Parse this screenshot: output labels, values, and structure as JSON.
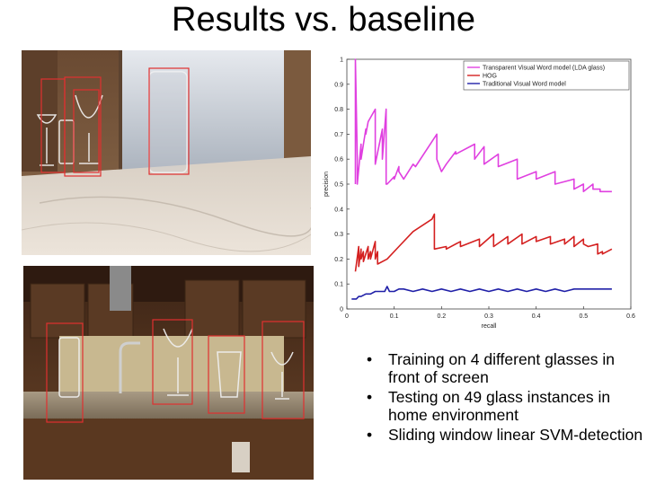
{
  "slide": {
    "title": "Results vs. baseline",
    "bullets": [
      "Training on 4 different glasses in front of screen",
      "Testing on 49 glass instances in home environment",
      "Sliding window linear SVM-detection"
    ]
  },
  "colors": {
    "detection_box": "#e03030",
    "series_lda": "#e040e0",
    "series_hog": "#d42020",
    "series_traditional": "#2020a8"
  },
  "chart_data": {
    "type": "line",
    "title": "",
    "xlabel": "recall",
    "ylabel": "precision",
    "xlim": [
      0,
      0.6
    ],
    "ylim": [
      0,
      1
    ],
    "xticks": [
      "0",
      "0.1",
      "0.2",
      "0.3",
      "0.4",
      "0.5",
      "0.6"
    ],
    "yticks": [
      "0",
      "0.1",
      "0.2",
      "0.3",
      "0.4",
      "0.5",
      "0.6",
      "0.7",
      "0.8",
      "0.9",
      "1"
    ],
    "legend_position": "top-right",
    "series": [
      {
        "name": "Transparent Visual Word model (LDA glass)",
        "color": "#e040e0",
        "x": [
          0.018,
          0.018,
          0.022,
          0.022,
          0.03,
          0.03,
          0.04,
          0.04,
          0.045,
          0.06,
          0.06,
          0.075,
          0.075,
          0.083,
          0.083,
          0.085,
          0.1,
          0.1,
          0.11,
          0.11,
          0.12,
          0.12,
          0.13,
          0.13,
          0.14,
          0.145,
          0.19,
          0.19,
          0.2,
          0.21,
          0.23,
          0.23,
          0.27,
          0.27,
          0.29,
          0.29,
          0.32,
          0.32,
          0.36,
          0.36,
          0.4,
          0.4,
          0.44,
          0.44,
          0.48,
          0.48,
          0.5,
          0.5,
          0.52,
          0.52,
          0.535,
          0.535,
          0.56
        ],
        "y": [
          0.5,
          1.0,
          0.6,
          0.5,
          0.66,
          0.6,
          0.72,
          0.7,
          0.75,
          0.8,
          0.58,
          0.72,
          0.6,
          0.8,
          0.5,
          0.5,
          0.53,
          0.52,
          0.57,
          0.55,
          0.52,
          0.52,
          0.55,
          0.55,
          0.58,
          0.57,
          0.7,
          0.6,
          0.55,
          0.58,
          0.63,
          0.62,
          0.66,
          0.6,
          0.65,
          0.58,
          0.62,
          0.57,
          0.6,
          0.52,
          0.55,
          0.52,
          0.55,
          0.5,
          0.52,
          0.48,
          0.5,
          0.47,
          0.5,
          0.48,
          0.48,
          0.47,
          0.47
        ]
      },
      {
        "name": "HOG",
        "color": "#d42020",
        "x": [
          0.018,
          0.025,
          0.025,
          0.03,
          0.03,
          0.035,
          0.035,
          0.045,
          0.045,
          0.05,
          0.05,
          0.06,
          0.06,
          0.065,
          0.065,
          0.085,
          0.11,
          0.14,
          0.18,
          0.185,
          0.185,
          0.21,
          0.21,
          0.24,
          0.24,
          0.28,
          0.28,
          0.31,
          0.31,
          0.34,
          0.34,
          0.37,
          0.37,
          0.4,
          0.4,
          0.43,
          0.43,
          0.46,
          0.46,
          0.48,
          0.48,
          0.5,
          0.5,
          0.51,
          0.51,
          0.53,
          0.53,
          0.54,
          0.54,
          0.56
        ],
        "y": [
          0.15,
          0.25,
          0.17,
          0.24,
          0.2,
          0.23,
          0.19,
          0.25,
          0.2,
          0.23,
          0.2,
          0.27,
          0.2,
          0.23,
          0.18,
          0.2,
          0.25,
          0.31,
          0.36,
          0.38,
          0.24,
          0.25,
          0.24,
          0.27,
          0.25,
          0.28,
          0.25,
          0.3,
          0.25,
          0.29,
          0.26,
          0.3,
          0.26,
          0.29,
          0.27,
          0.29,
          0.26,
          0.28,
          0.26,
          0.29,
          0.25,
          0.28,
          0.26,
          0.25,
          0.25,
          0.26,
          0.22,
          0.23,
          0.22,
          0.24
        ]
      },
      {
        "name": "Traditional Visual Word model",
        "color": "#2020a8",
        "x": [
          0.01,
          0.02,
          0.025,
          0.03,
          0.04,
          0.05,
          0.06,
          0.07,
          0.08,
          0.085,
          0.09,
          0.1,
          0.11,
          0.12,
          0.14,
          0.16,
          0.18,
          0.2,
          0.22,
          0.24,
          0.26,
          0.28,
          0.3,
          0.32,
          0.34,
          0.36,
          0.38,
          0.4,
          0.42,
          0.44,
          0.46,
          0.48,
          0.5,
          0.52,
          0.54,
          0.56
        ],
        "y": [
          0.04,
          0.04,
          0.05,
          0.05,
          0.06,
          0.06,
          0.07,
          0.07,
          0.07,
          0.09,
          0.07,
          0.07,
          0.08,
          0.08,
          0.07,
          0.08,
          0.07,
          0.08,
          0.07,
          0.08,
          0.07,
          0.08,
          0.07,
          0.08,
          0.07,
          0.08,
          0.07,
          0.08,
          0.07,
          0.08,
          0.07,
          0.08,
          0.08,
          0.08,
          0.08,
          0.08
        ]
      }
    ]
  }
}
